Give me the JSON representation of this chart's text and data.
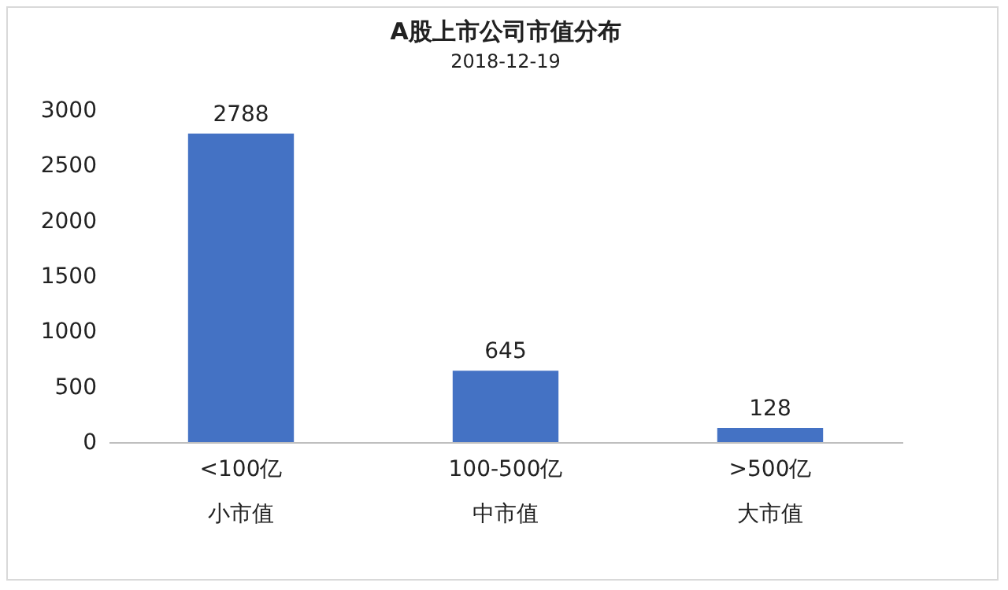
{
  "chart_data": {
    "type": "bar",
    "title": "A股上市公司市值分布",
    "subtitle": "2018-12-19",
    "categories": [
      "<100亿",
      "100-500亿",
      ">500亿"
    ],
    "values": [
      2788,
      645,
      128
    ],
    "color": "#4472c4",
    "ylim": [
      0,
      3000
    ],
    "yticks": [
      0,
      500,
      1000,
      1500,
      2000,
      2500,
      3000
    ],
    "annotations": [
      "小市值",
      "中市值",
      "大市值"
    ],
    "grid": false,
    "data_labels": true
  }
}
